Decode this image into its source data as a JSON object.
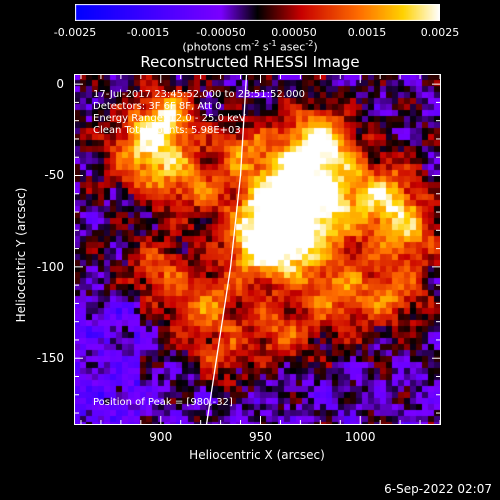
{
  "colorbar": {
    "ticks": [
      "-0.0025",
      "-0.0015",
      "-0.00050",
      "0.00050",
      "0.0015",
      "0.0025"
    ],
    "tick_values": [
      -0.0025,
      -0.0015,
      -0.0005,
      0.0005,
      0.0015,
      0.0025
    ],
    "range": [
      -0.0025,
      0.0025
    ],
    "units_prefix": "(photons cm",
    "units_exp1": "-2",
    "units_mid1": " s",
    "units_exp2": "-1",
    "units_mid2": " asec",
    "units_exp3": "-2",
    "units_suffix": ")",
    "colors": [
      "#0000ff",
      "#7a00ff",
      "#ff0000",
      "#ff8800",
      "#ffffff"
    ]
  },
  "chart_data": {
    "type": "heatmap",
    "title": "Reconstructed RHESSI Image",
    "xlabel": "Heliocentric X (arcsec)",
    "ylabel": "Heliocentric Y (arcsec)",
    "xlim": [
      857,
      1040
    ],
    "ylim": [
      -186,
      5
    ],
    "xticks": [
      {
        "value": 900,
        "label": "900"
      },
      {
        "value": 950,
        "label": "950"
      },
      {
        "value": 1000,
        "label": "1000"
      }
    ],
    "yticks": [
      {
        "value": 0,
        "label": "0"
      },
      {
        "value": -50,
        "label": "-50"
      },
      {
        "value": -100,
        "label": "-100"
      },
      {
        "value": -150,
        "label": "-150"
      }
    ],
    "annotations": {
      "time_range": "17-Jul-2017 23:45:52.000 to 23:51:52.000",
      "detectors": "Detectors: 3F 6F 8F, Att 0",
      "energy": "Energy Range: 12.0 - 25.0 keV",
      "clean": "Clean     Total counts: 5.98E+03",
      "peak": "Position of Peak = [980,-32]"
    },
    "peak": [
      980,
      -32
    ],
    "limb_points": [
      [
        943,
        5
      ],
      [
        940,
        -50
      ],
      [
        935,
        -100
      ],
      [
        928,
        -150
      ],
      [
        923,
        -186
      ]
    ],
    "grid": false,
    "legend": "none"
  },
  "footer": {
    "date": "6-Sep-2022 02:07"
  }
}
